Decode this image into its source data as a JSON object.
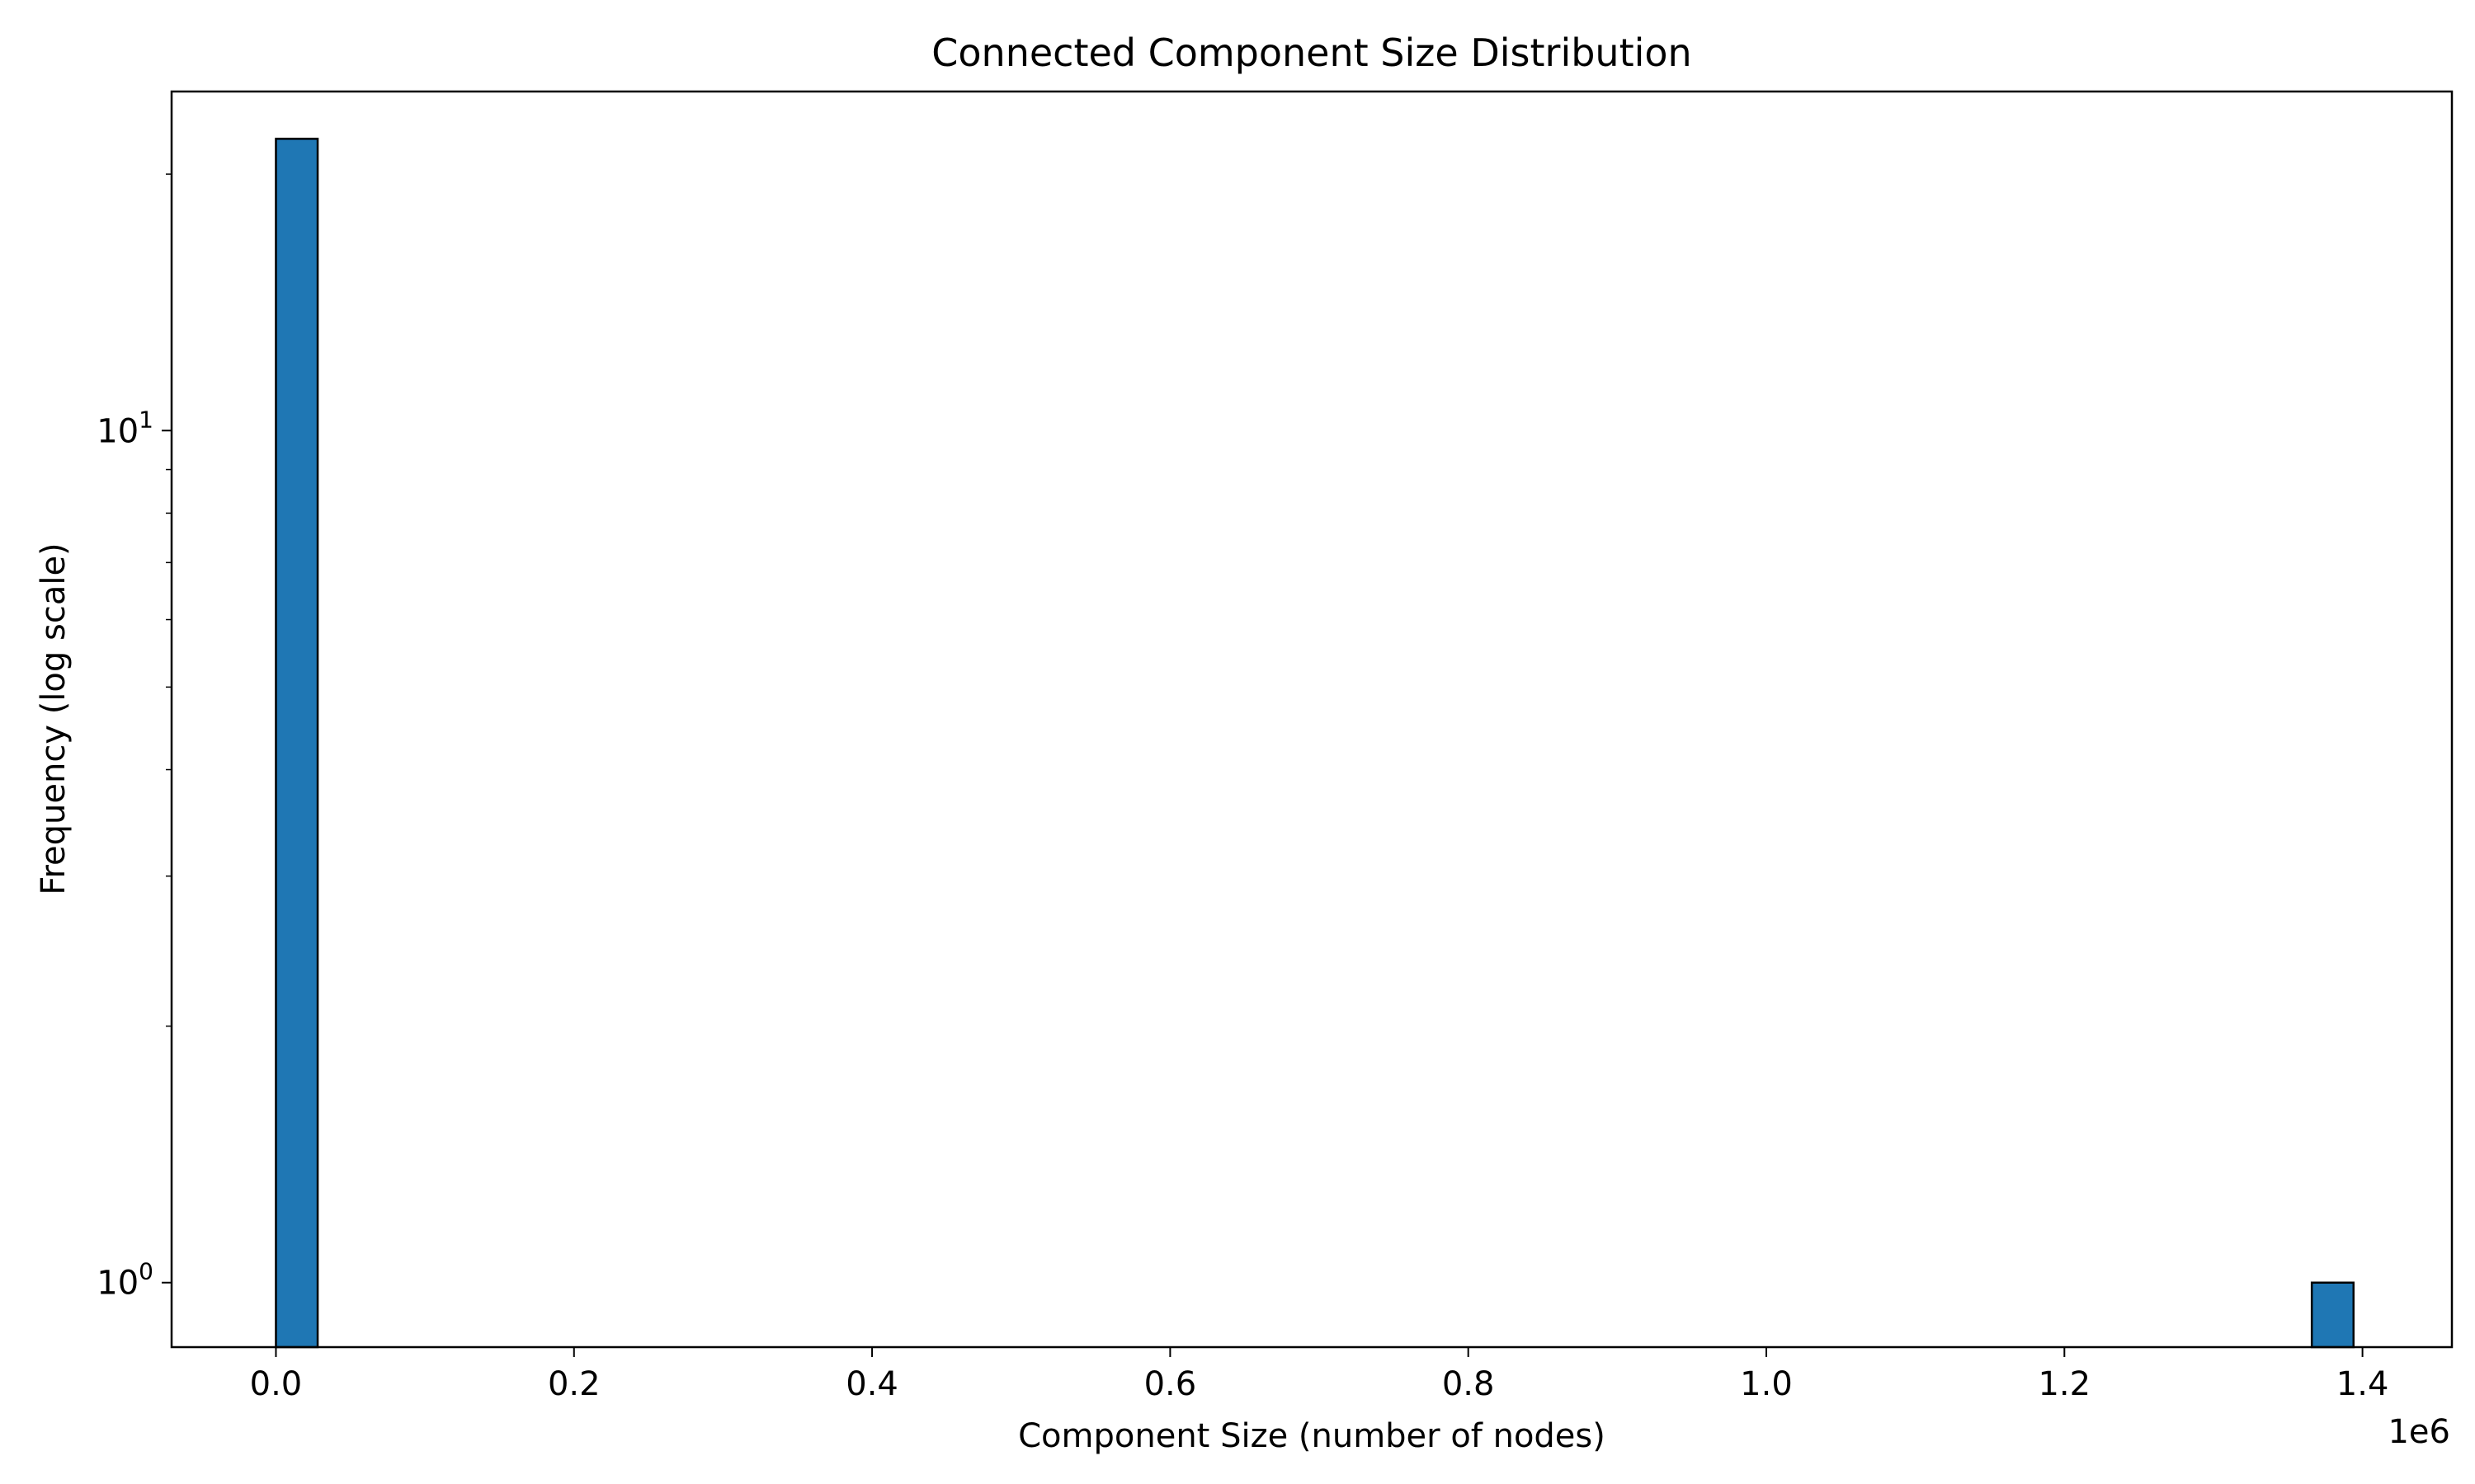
{
  "chart_data": {
    "type": "bar",
    "title": "Connected Component Size Distribution",
    "xlabel": "Component Size (number of nodes)",
    "ylabel": "Frequency (log scale)",
    "x_offset_label": "1e6",
    "x_scale": "linear",
    "y_scale": "log",
    "xlim": [
      -70000,
      1460000
    ],
    "ylim": [
      0.84,
      25
    ],
    "x_ticks": [
      {
        "value": 0,
        "label": "0.0"
      },
      {
        "value": 200000,
        "label": "0.2"
      },
      {
        "value": 400000,
        "label": "0.4"
      },
      {
        "value": 600000,
        "label": "0.6"
      },
      {
        "value": 800000,
        "label": "0.8"
      },
      {
        "value": 1000000,
        "label": "1.0"
      },
      {
        "value": 1200000,
        "label": "1.2"
      },
      {
        "value": 1400000,
        "label": "1.4"
      }
    ],
    "y_ticks": [
      {
        "value": 1,
        "base": "10",
        "exp": "0"
      },
      {
        "value": 10,
        "base": "10",
        "exp": "1"
      }
    ],
    "y_minor_ticks": [
      2,
      3,
      4,
      5,
      6,
      7,
      8,
      9,
      20
    ],
    "bins": [
      {
        "x0": 0,
        "x1": 28000,
        "count": 22
      },
      {
        "x0": 1366000,
        "x1": 1394000,
        "count": 1
      }
    ],
    "bar_color": "#1f77b4",
    "edge_color": "#000000",
    "grid": false,
    "legend": "none"
  }
}
